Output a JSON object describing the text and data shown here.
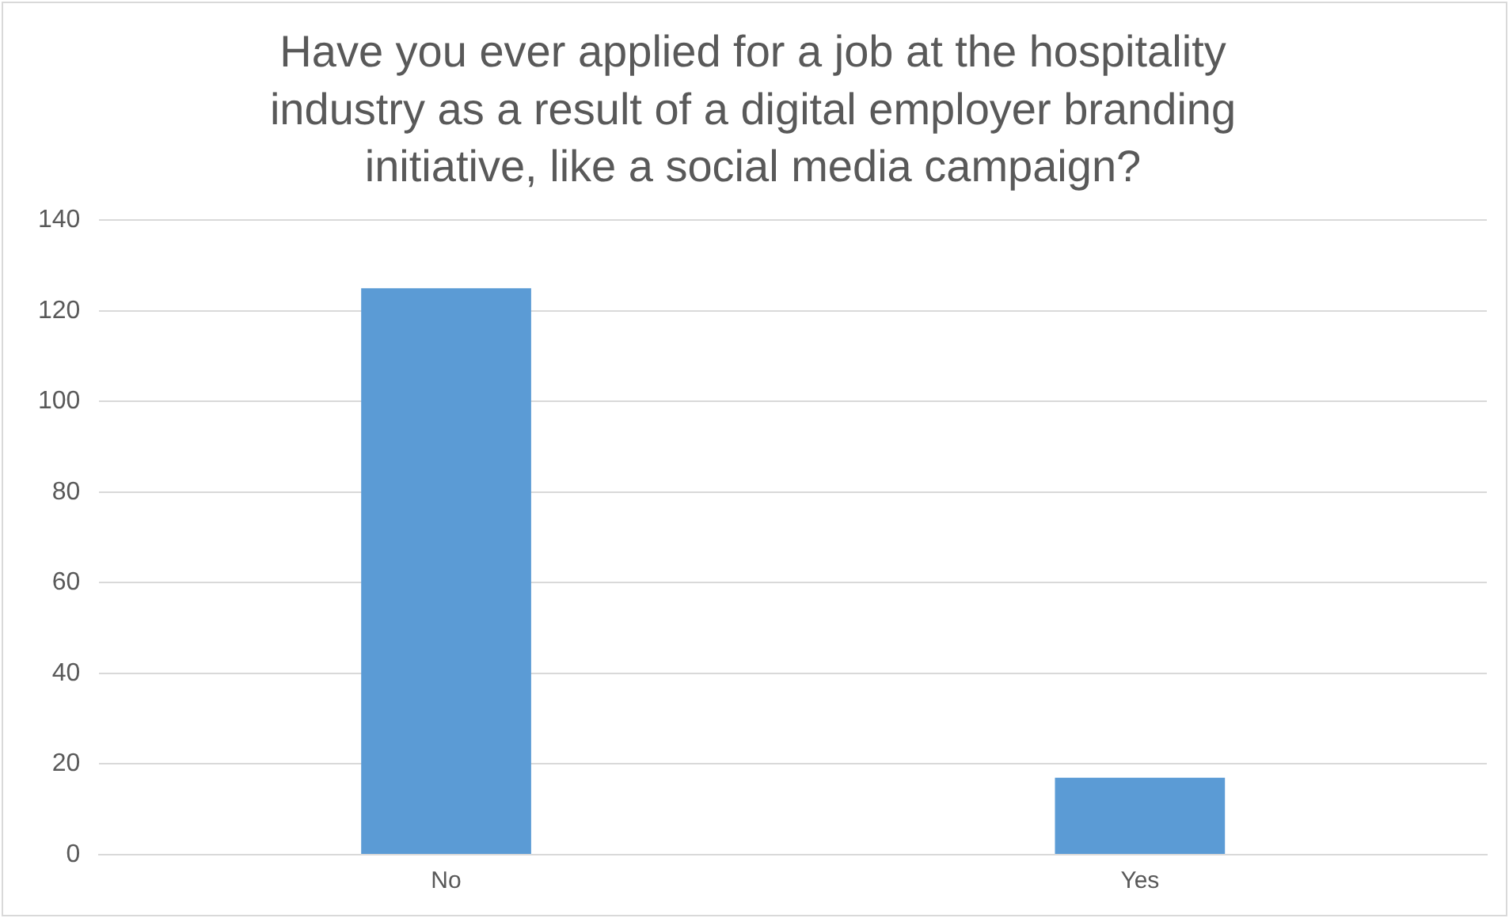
{
  "chart_data": {
    "type": "bar",
    "title": "Have you ever applied for a job at the hospitality industry as a result of a digital employer branding initiative, like a social media campaign?",
    "categories": [
      "No",
      "Yes"
    ],
    "values": [
      125,
      17
    ],
    "color": "#5b9bd5",
    "ylim": [
      0,
      140
    ],
    "yticks": [
      0,
      20,
      40,
      60,
      80,
      100,
      120,
      140
    ],
    "grid": "y",
    "legend": false
  }
}
